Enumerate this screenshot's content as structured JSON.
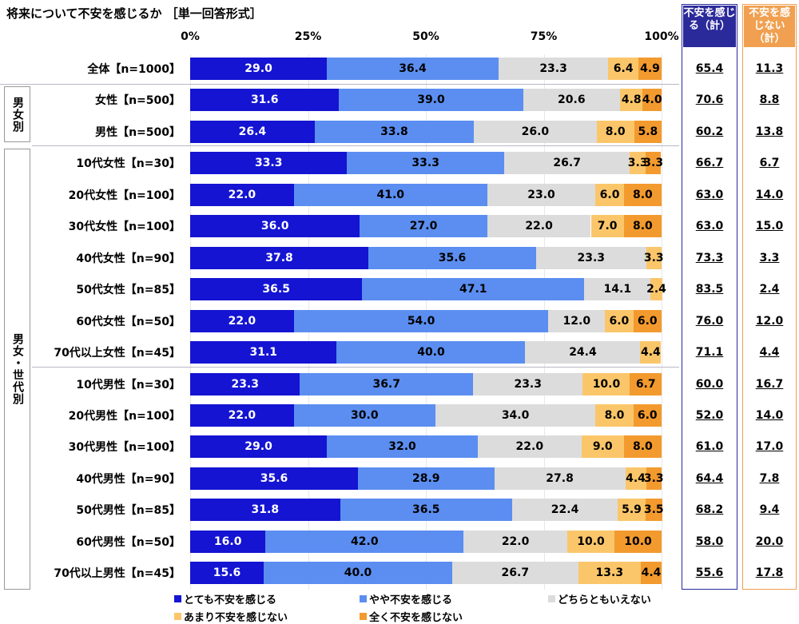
{
  "chart_data": {
    "type": "bar",
    "orientation": "horizontal-stacked-100",
    "title": "将来について不安を感じるか ［単一回答形式］",
    "xlim": [
      0,
      100
    ],
    "xticks": [
      "0%",
      "25%",
      "50%",
      "75%",
      "100%"
    ],
    "grid": true,
    "legend_position": "bottom",
    "categories": [
      "全体【n=1000】",
      "女性【n=500】",
      "男性【n=500】",
      "10代女性【n=30】",
      "20代女性【n=100】",
      "30代女性【n=100】",
      "40代女性【n=90】",
      "50代女性【n=85】",
      "60代女性【n=50】",
      "70代以上女性【n=45】",
      "10代男性【n=30】",
      "20代男性【n=100】",
      "30代男性【n=100】",
      "40代男性【n=90】",
      "50代男性【n=85】",
      "60代男性【n=50】",
      "70代以上男性【n=45】"
    ],
    "series": [
      {
        "name": "とても不安を感じる",
        "color": "#1414d2",
        "values": [
          29.0,
          31.6,
          26.4,
          33.3,
          22.0,
          36.0,
          37.8,
          36.5,
          22.0,
          31.1,
          23.3,
          22.0,
          29.0,
          35.6,
          31.8,
          16.0,
          15.6
        ]
      },
      {
        "name": "やや不安を感じる",
        "color": "#5b8ef0",
        "values": [
          36.4,
          39.0,
          33.8,
          33.3,
          41.0,
          27.0,
          35.6,
          47.1,
          54.0,
          40.0,
          36.7,
          30.0,
          32.0,
          28.9,
          36.5,
          42.0,
          40.0
        ]
      },
      {
        "name": "どちらともいえない",
        "color": "#dcdcdc",
        "values": [
          23.3,
          20.6,
          26.0,
          26.7,
          23.0,
          22.0,
          23.3,
          14.1,
          12.0,
          24.4,
          23.3,
          34.0,
          22.0,
          27.8,
          22.4,
          22.0,
          26.7
        ]
      },
      {
        "name": "あまり不安を感じない",
        "color": "#fbc66a",
        "values": [
          6.4,
          4.8,
          8.0,
          3.3,
          6.0,
          7.0,
          3.3,
          2.4,
          6.0,
          4.4,
          10.0,
          8.0,
          9.0,
          4.4,
          5.9,
          10.0,
          13.3
        ]
      },
      {
        "name": "全く不安を感じない",
        "color": "#f39a2e",
        "values": [
          4.9,
          4.0,
          5.8,
          3.3,
          8.0,
          8.0,
          0,
          0,
          6.0,
          0,
          6.7,
          6.0,
          8.0,
          3.3,
          3.5,
          10.0,
          4.4
        ]
      }
    ],
    "totals": {
      "anxious": {
        "header": "不安を感じる（計）",
        "color": "#2a2a9a",
        "values": [
          "65.4",
          "70.6",
          "60.2",
          "66.7",
          "63.0",
          "63.0",
          "73.3",
          "83.5",
          "76.0",
          "71.1",
          "60.0",
          "52.0",
          "61.0",
          "64.4",
          "68.2",
          "58.0",
          "55.6"
        ]
      },
      "not_anxious": {
        "header": "不安を感じない（計）",
        "color": "#f0a050",
        "values": [
          "11.3",
          "8.8",
          "13.8",
          "6.7",
          "14.0",
          "15.0",
          "3.3",
          "2.4",
          "12.0",
          "4.4",
          "16.7",
          "14.0",
          "17.0",
          "7.8",
          "9.4",
          "20.0",
          "17.8"
        ]
      }
    },
    "groups": [
      "男女別",
      "男女・世代別"
    ]
  }
}
